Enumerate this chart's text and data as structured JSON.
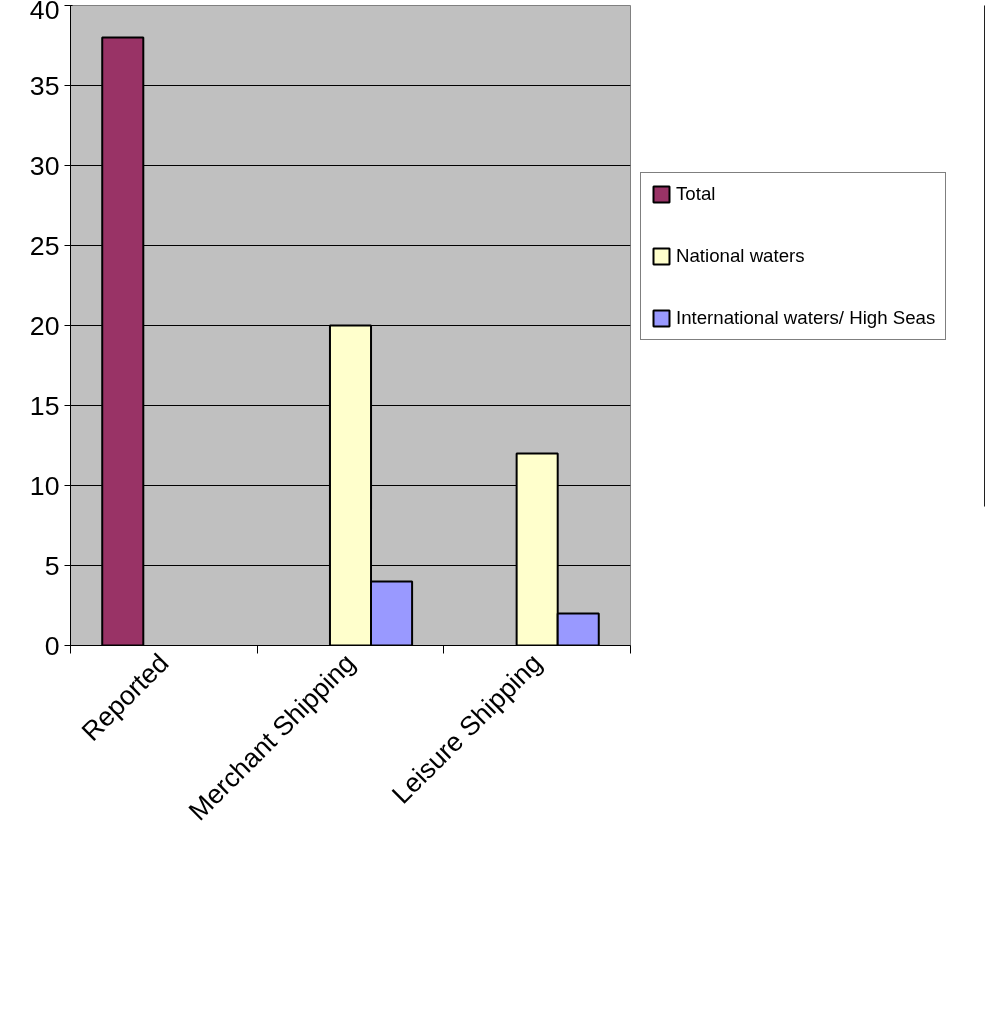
{
  "chart_data": {
    "type": "bar",
    "categories": [
      "Reported",
      "Merchant Shipping",
      "Leisure Shipping"
    ],
    "series": [
      {
        "name": "Total",
        "color": "#993366",
        "values": [
          38,
          null,
          null
        ]
      },
      {
        "name": "National waters",
        "color": "#ffffcc",
        "values": [
          null,
          20,
          12
        ]
      },
      {
        "name": "International waters/ High Seas",
        "color": "#9999ff",
        "values": [
          null,
          4,
          2
        ]
      }
    ],
    "ylim": [
      0,
      40
    ],
    "yticks": [
      0,
      5,
      10,
      15,
      20,
      25,
      30,
      35,
      40
    ],
    "grid": "y",
    "legend": "right"
  }
}
